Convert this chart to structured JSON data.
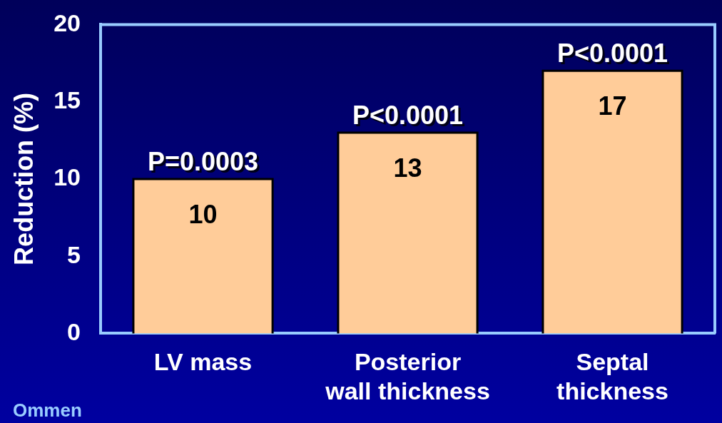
{
  "chart_data": {
    "type": "bar",
    "ylabel": "Reduction (%)",
    "categories": [
      "LV mass",
      "Posterior\nwall thickness",
      "Septal\nthickness"
    ],
    "values": [
      10,
      13,
      17
    ],
    "color": "#ffcc99",
    "data_labels": true,
    "ylim": [
      0,
      20
    ],
    "yticks": [
      0,
      5,
      10,
      15,
      20
    ],
    "grid": false,
    "legend": false,
    "annotations": [
      {
        "text": "P=0.0003",
        "x": "LV mass",
        "y": 10
      },
      {
        "text": "P<0.0001",
        "x": "Posterior\nwall thickness",
        "y": 13
      },
      {
        "text": "P<0.0001",
        "x": "Septal\nthickness",
        "y": 17
      },
      "Ommen"
    ]
  }
}
